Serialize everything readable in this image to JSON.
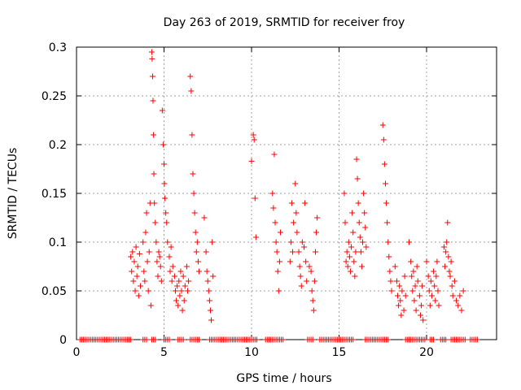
{
  "chart_data": {
    "type": "scatter",
    "title": "Day 263 of 2019, SRMTID for receiver froy",
    "xlabel": "GPS time / hours",
    "ylabel": "SRMTID / TECUs",
    "xlim": [
      0,
      24
    ],
    "ylim": [
      0,
      0.3
    ],
    "xticks": [
      0,
      5,
      10,
      15,
      20
    ],
    "yticks": [
      0,
      0.05,
      0.1,
      0.15,
      0.2,
      0.25,
      0.3
    ],
    "xtick_labels": [
      "0",
      "5",
      "10",
      "15",
      "20"
    ],
    "ytick_labels": [
      "0",
      "0.05",
      "0.1",
      "0.15",
      "0.2",
      "0.25",
      "0.3"
    ],
    "grid": true,
    "marker": "+",
    "series": [
      {
        "name": "SRMTID",
        "color": "#ff0000",
        "points": [
          [
            3.1,
            0.085
          ],
          [
            3.15,
            0.07
          ],
          [
            3.2,
            0.09
          ],
          [
            3.25,
            0.06
          ],
          [
            3.3,
            0.08
          ],
          [
            3.35,
            0.05
          ],
          [
            3.4,
            0.095
          ],
          [
            3.45,
            0.065
          ],
          [
            3.5,
            0.075
          ],
          [
            3.55,
            0.045
          ],
          [
            3.6,
            0.088
          ],
          [
            3.65,
            0.055
          ],
          [
            3.8,
            0.1
          ],
          [
            3.85,
            0.07
          ],
          [
            3.9,
            0.06
          ],
          [
            3.95,
            0.11
          ],
          [
            4.0,
            0.13
          ],
          [
            4.05,
            0.08
          ],
          [
            4.1,
            0.05
          ],
          [
            4.15,
            0.09
          ],
          [
            4.2,
            0.14
          ],
          [
            4.25,
            0.035
          ],
          [
            4.3,
            0.295
          ],
          [
            4.32,
            0.288
          ],
          [
            4.35,
            0.27
          ],
          [
            4.37,
            0.245
          ],
          [
            4.4,
            0.21
          ],
          [
            4.42,
            0.17
          ],
          [
            4.45,
            0.14
          ],
          [
            4.5,
            0.12
          ],
          [
            4.55,
            0.1
          ],
          [
            4.6,
            0.08
          ],
          [
            4.65,
            0.065
          ],
          [
            4.7,
            0.09
          ],
          [
            4.75,
            0.085
          ],
          [
            4.8,
            0.075
          ],
          [
            4.85,
            0.06
          ],
          [
            4.9,
            0.235
          ],
          [
            4.95,
            0.2
          ],
          [
            5.0,
            0.18
          ],
          [
            5.02,
            0.16
          ],
          [
            5.05,
            0.145
          ],
          [
            5.1,
            0.13
          ],
          [
            5.15,
            0.12
          ],
          [
            5.2,
            0.1
          ],
          [
            5.3,
            0.085
          ],
          [
            5.35,
            0.07
          ],
          [
            5.4,
            0.095
          ],
          [
            5.45,
            0.06
          ],
          [
            5.5,
            0.075
          ],
          [
            5.6,
            0.065
          ],
          [
            5.65,
            0.05
          ],
          [
            5.7,
            0.04
          ],
          [
            5.75,
            0.055
          ],
          [
            5.8,
            0.035
          ],
          [
            5.85,
            0.06
          ],
          [
            5.9,
            0.045
          ],
          [
            5.95,
            0.07
          ],
          [
            6.0,
            0.05
          ],
          [
            6.05,
            0.03
          ],
          [
            6.1,
            0.065
          ],
          [
            6.15,
            0.04
          ],
          [
            6.2,
            0.055
          ],
          [
            6.3,
            0.075
          ],
          [
            6.35,
            0.05
          ],
          [
            6.4,
            0.06
          ],
          [
            6.5,
            0.27
          ],
          [
            6.55,
            0.255
          ],
          [
            6.6,
            0.21
          ],
          [
            6.65,
            0.17
          ],
          [
            6.7,
            0.15
          ],
          [
            6.75,
            0.13
          ],
          [
            6.8,
            0.11
          ],
          [
            6.85,
            0.09
          ],
          [
            6.9,
            0.1
          ],
          [
            6.95,
            0.08
          ],
          [
            7.0,
            0.07
          ],
          [
            7.3,
            0.125
          ],
          [
            7.4,
            0.09
          ],
          [
            7.45,
            0.07
          ],
          [
            7.5,
            0.06
          ],
          [
            7.55,
            0.05
          ],
          [
            7.6,
            0.04
          ],
          [
            7.65,
            0.03
          ],
          [
            7.7,
            0.02
          ],
          [
            7.75,
            0.1
          ],
          [
            7.8,
            0.065
          ],
          [
            10.0,
            0.183
          ],
          [
            10.1,
            0.21
          ],
          [
            10.15,
            0.205
          ],
          [
            10.2,
            0.145
          ],
          [
            10.25,
            0.105
          ],
          [
            11.2,
            0.15
          ],
          [
            11.25,
            0.135
          ],
          [
            11.3,
            0.19
          ],
          [
            11.35,
            0.12
          ],
          [
            11.4,
            0.1
          ],
          [
            11.45,
            0.09
          ],
          [
            11.5,
            0.07
          ],
          [
            11.55,
            0.05
          ],
          [
            11.6,
            0.08
          ],
          [
            11.65,
            0.11
          ],
          [
            12.2,
            0.08
          ],
          [
            12.25,
            0.1
          ],
          [
            12.3,
            0.14
          ],
          [
            12.35,
            0.09
          ],
          [
            12.4,
            0.12
          ],
          [
            12.5,
            0.16
          ],
          [
            12.55,
            0.13
          ],
          [
            12.6,
            0.11
          ],
          [
            12.7,
            0.09
          ],
          [
            12.75,
            0.075
          ],
          [
            12.8,
            0.065
          ],
          [
            12.85,
            0.055
          ],
          [
            12.9,
            0.1
          ],
          [
            13.0,
            0.095
          ],
          [
            13.05,
            0.14
          ],
          [
            13.1,
            0.08
          ],
          [
            13.15,
            0.06
          ],
          [
            13.3,
            0.075
          ],
          [
            13.4,
            0.07
          ],
          [
            13.45,
            0.05
          ],
          [
            13.5,
            0.04
          ],
          [
            13.55,
            0.03
          ],
          [
            13.6,
            0.06
          ],
          [
            13.65,
            0.09
          ],
          [
            13.7,
            0.11
          ],
          [
            13.75,
            0.125
          ],
          [
            15.3,
            0.15
          ],
          [
            15.35,
            0.12
          ],
          [
            15.4,
            0.08
          ],
          [
            15.45,
            0.09
          ],
          [
            15.5,
            0.075
          ],
          [
            15.55,
            0.1
          ],
          [
            15.6,
            0.085
          ],
          [
            15.65,
            0.07
          ],
          [
            15.7,
            0.095
          ],
          [
            15.75,
            0.13
          ],
          [
            15.8,
            0.11
          ],
          [
            15.85,
            0.08
          ],
          [
            15.9,
            0.065
          ],
          [
            15.95,
            0.09
          ],
          [
            16.0,
            0.185
          ],
          [
            16.05,
            0.165
          ],
          [
            16.1,
            0.14
          ],
          [
            16.15,
            0.12
          ],
          [
            16.2,
            0.105
          ],
          [
            16.25,
            0.09
          ],
          [
            16.3,
            0.075
          ],
          [
            16.35,
            0.1
          ],
          [
            16.4,
            0.15
          ],
          [
            16.45,
            0.13
          ],
          [
            16.5,
            0.115
          ],
          [
            16.55,
            0.095
          ],
          [
            17.5,
            0.22
          ],
          [
            17.55,
            0.205
          ],
          [
            17.6,
            0.18
          ],
          [
            17.65,
            0.16
          ],
          [
            17.7,
            0.14
          ],
          [
            17.75,
            0.12
          ],
          [
            17.8,
            0.1
          ],
          [
            17.85,
            0.085
          ],
          [
            17.9,
            0.07
          ],
          [
            17.95,
            0.06
          ],
          [
            18.0,
            0.05
          ],
          [
            18.2,
            0.075
          ],
          [
            18.3,
            0.06
          ],
          [
            18.35,
            0.045
          ],
          [
            18.4,
            0.035
          ],
          [
            18.45,
            0.055
          ],
          [
            18.5,
            0.04
          ],
          [
            18.55,
            0.025
          ],
          [
            18.6,
            0.05
          ],
          [
            18.7,
            0.03
          ],
          [
            18.75,
            0.065
          ],
          [
            18.8,
            0.045
          ],
          [
            19.0,
            0.1
          ],
          [
            19.1,
            0.08
          ],
          [
            19.15,
            0.065
          ],
          [
            19.2,
            0.05
          ],
          [
            19.25,
            0.07
          ],
          [
            19.3,
            0.04
          ],
          [
            19.35,
            0.055
          ],
          [
            19.4,
            0.03
          ],
          [
            19.45,
            0.075
          ],
          [
            19.5,
            0.06
          ],
          [
            19.6,
            0.045
          ],
          [
            19.65,
            0.025
          ],
          [
            19.7,
            0.035
          ],
          [
            19.75,
            0.055
          ],
          [
            19.8,
            0.02
          ],
          [
            20.0,
            0.08
          ],
          [
            20.1,
            0.065
          ],
          [
            20.15,
            0.05
          ],
          [
            20.2,
            0.035
          ],
          [
            20.25,
            0.06
          ],
          [
            20.3,
            0.045
          ],
          [
            20.4,
            0.07
          ],
          [
            20.45,
            0.055
          ],
          [
            20.5,
            0.04
          ],
          [
            20.55,
            0.065
          ],
          [
            20.6,
            0.08
          ],
          [
            20.65,
            0.05
          ],
          [
            20.7,
            0.035
          ],
          [
            21.0,
            0.095
          ],
          [
            21.05,
            0.075
          ],
          [
            21.1,
            0.09
          ],
          [
            21.15,
            0.1
          ],
          [
            21.2,
            0.12
          ],
          [
            21.25,
            0.085
          ],
          [
            21.3,
            0.07
          ],
          [
            21.35,
            0.065
          ],
          [
            21.4,
            0.08
          ],
          [
            21.45,
            0.055
          ],
          [
            21.5,
            0.045
          ],
          [
            21.6,
            0.06
          ],
          [
            21.7,
            0.04
          ],
          [
            21.8,
            0.035
          ],
          [
            21.9,
            0.045
          ],
          [
            22.0,
            0.03
          ],
          [
            22.1,
            0.05
          ]
        ],
        "zero_ranges": [
          [
            0.2,
            3.1
          ],
          [
            3.8,
            4.0
          ],
          [
            4.3,
            4.5
          ],
          [
            5.0,
            5.3
          ],
          [
            5.8,
            6.1
          ],
          [
            6.5,
            7.0
          ],
          [
            7.6,
            10.3
          ],
          [
            10.8,
            11.8
          ],
          [
            13.2,
            13.5
          ],
          [
            13.9,
            15.8
          ],
          [
            16.5,
            17.8
          ],
          [
            18.8,
            19.9
          ],
          [
            20.2,
            20.4
          ],
          [
            20.8,
            21.1
          ],
          [
            21.4,
            22.2
          ],
          [
            22.5,
            22.9
          ]
        ]
      }
    ]
  }
}
